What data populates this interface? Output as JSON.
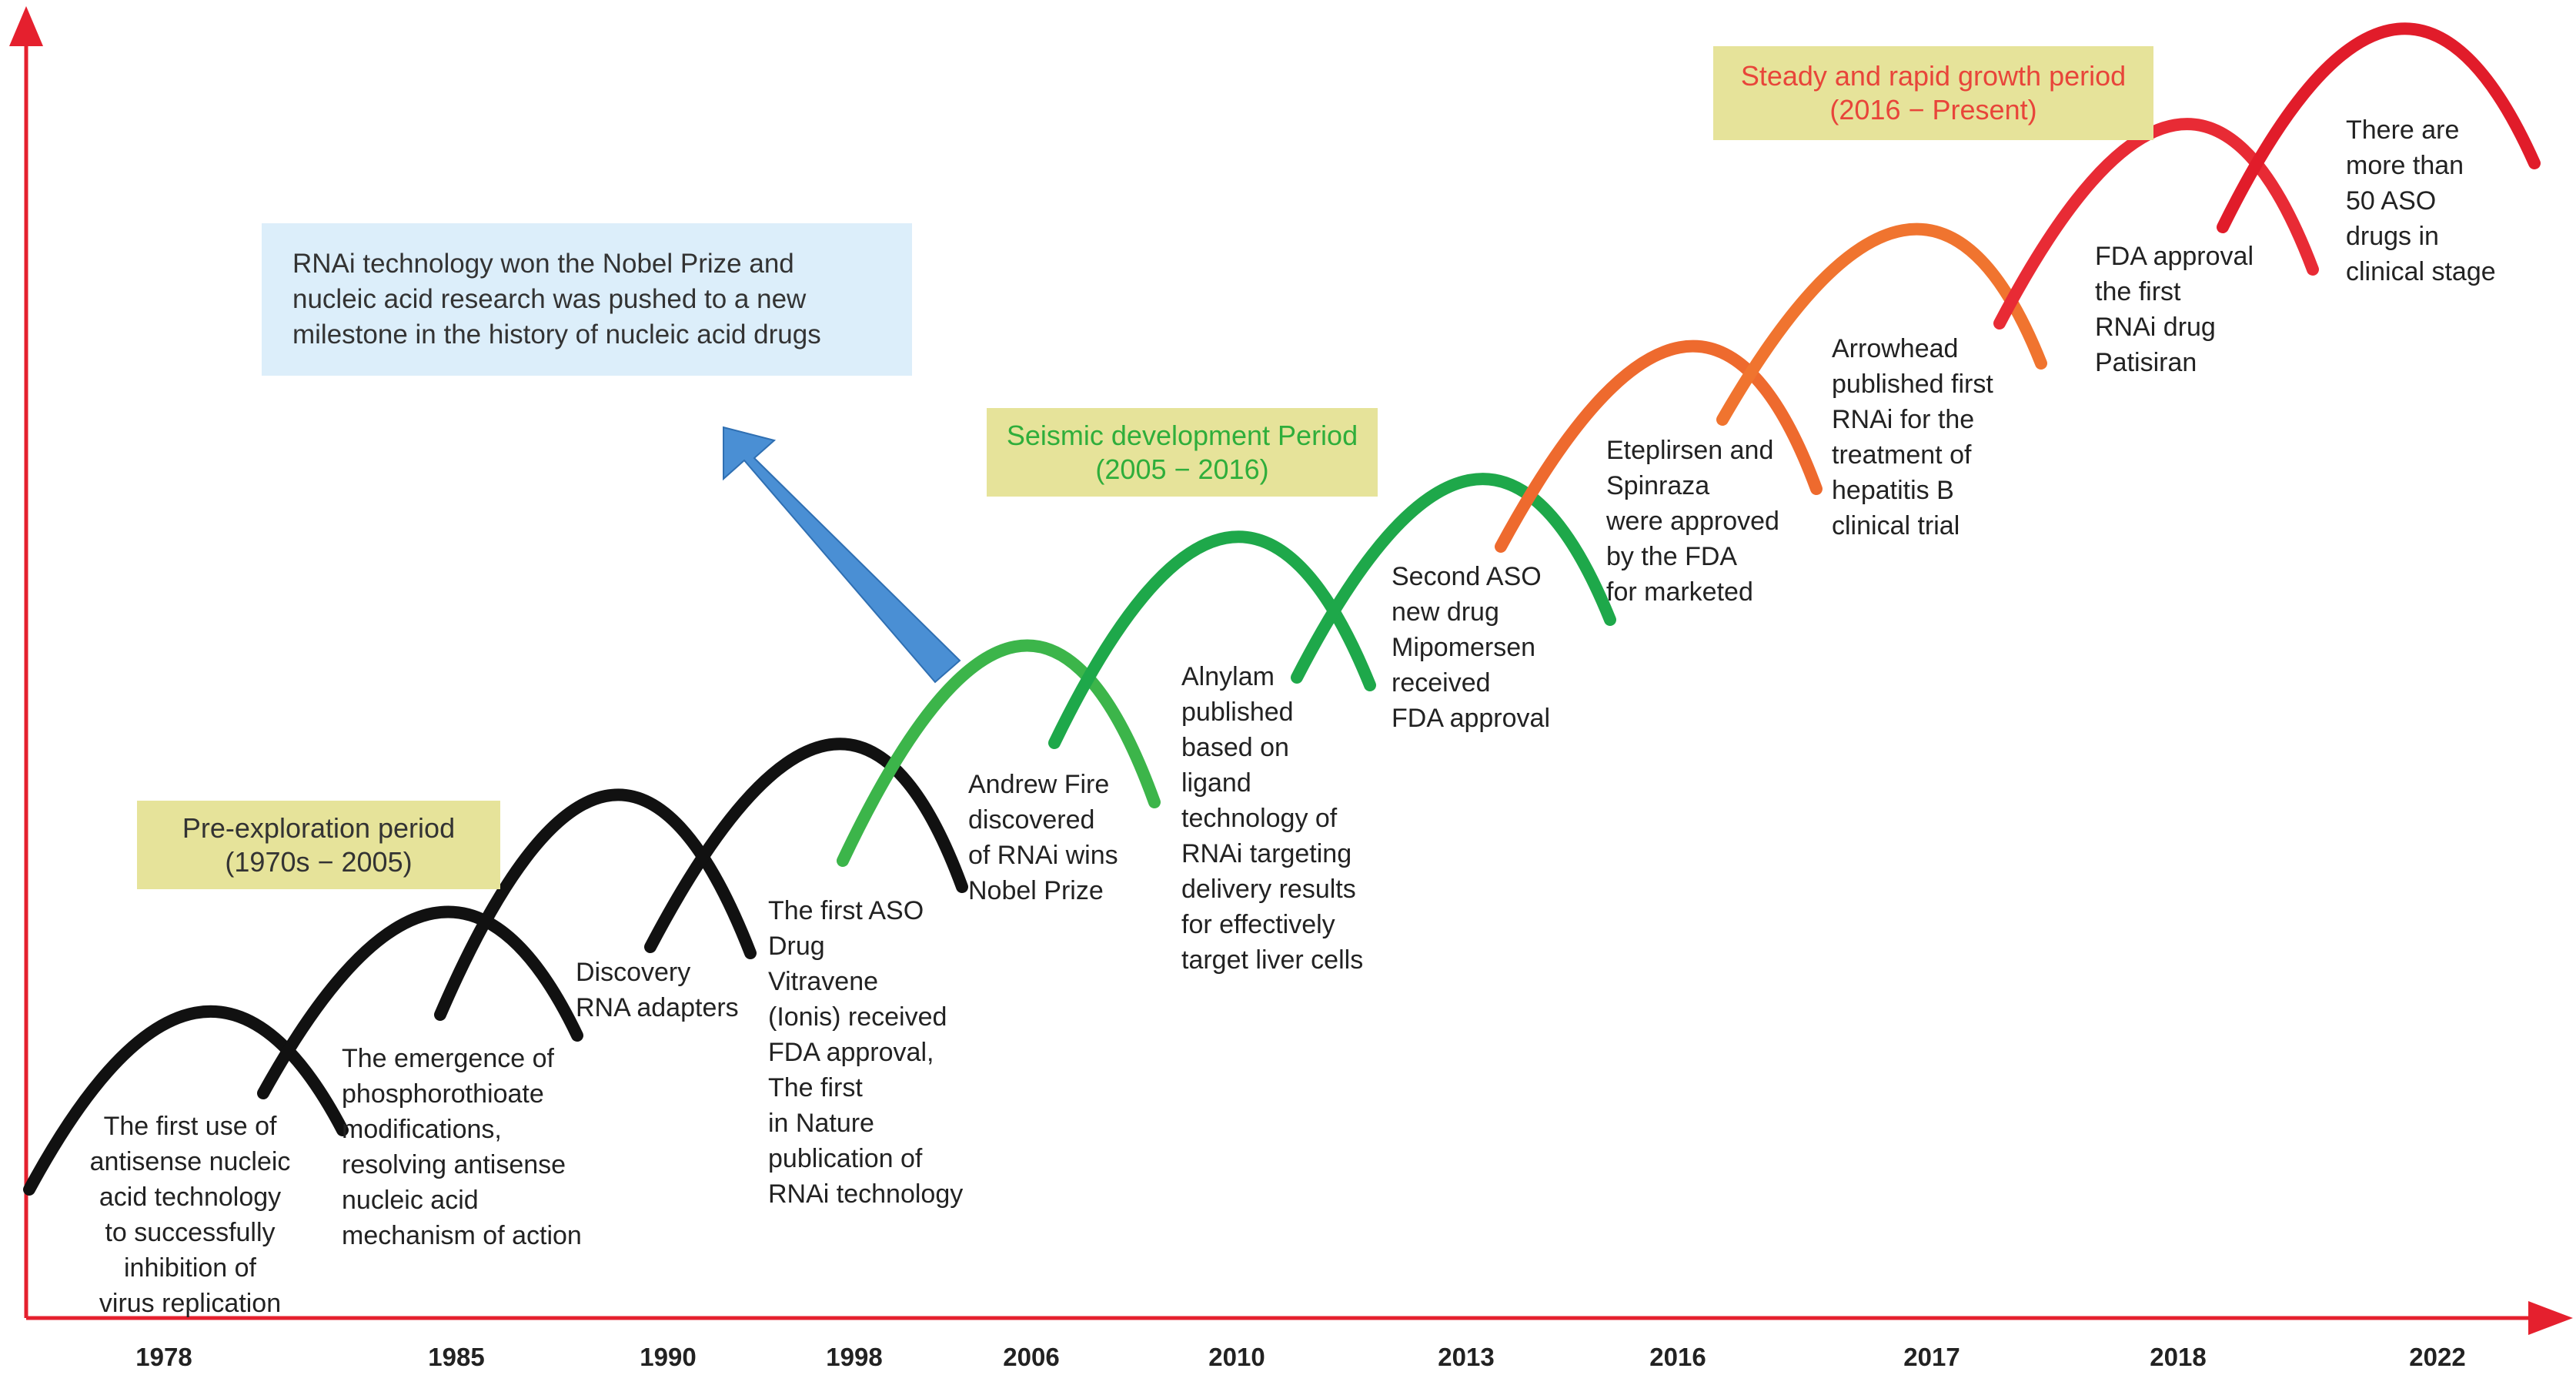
{
  "periods": {
    "pre": {
      "name": "Pre-exploration period",
      "range": "(1970s − 2005)",
      "color": "#333333"
    },
    "seismic": {
      "name": "Seismic development Period",
      "range": "(2005 − 2016)",
      "color": "#2fae3b"
    },
    "steady": {
      "name": "Steady and rapid growth period",
      "range": "(2016 − Present)",
      "color": "#e8453a"
    }
  },
  "nobel_note": "RNAi technology won the Nobel Prize and\nnucleic acid research was pushed to a new\nmilestone in the history of nucleic acid drugs",
  "events": {
    "e1978": "The first use of\nantisense nucleic\nacid technology\nto successfully\ninhibition of\nvirus replication",
    "e1985": "The emergence of\nphosphorothioate\nmodifications,\nresolving antisense\nnucleic acid\nmechanism of action",
    "e1990": "Discovery\nRNA adapters",
    "e1998": "The first ASO\nDrug\nVitravene\n(Ionis) received\nFDA approval,\nThe first\nin Nature\npublication of\nRNAi technology",
    "e2006": "Andrew Fire\ndiscovered\nof RNAi wins\nNobel Prize",
    "e2010": "Alnylam\npublished\nbased on\nligand\ntechnology of\nRNAi targeting\ndelivery results\nfor effectively\ntarget liver cells",
    "e2013": "Second ASO\nnew drug\nMipomersen\nreceived\nFDA approval",
    "e2016": "Eteplirsen and\nSpinraza\nwere approved\nby the FDA\nfor marketed",
    "e2017": "Arrowhead\npublished first\nRNAi for the\ntreatment of\nhepatitis B\nclinical trial",
    "e2018": "FDA approval\nthe first\nRNAi drug\nPatisiran",
    "e2022": "There are\nmore than\n50 ASO\ndrugs in\nclinical stage"
  },
  "years": [
    "1978",
    "1985",
    "1990",
    "1998",
    "2006",
    "2010",
    "2013",
    "2016",
    "2017",
    "2018",
    "2022"
  ],
  "colors": {
    "axis": "#e5202e",
    "arrow": "#4a8fd4",
    "arcs": [
      "#111111",
      "#111111",
      "#111111",
      "#111111",
      "#3cb54a",
      "#1ea84a",
      "#1ea84a",
      "#ee6a2e",
      "#f0742f",
      "#e82b35",
      "#e11c2a"
    ]
  }
}
